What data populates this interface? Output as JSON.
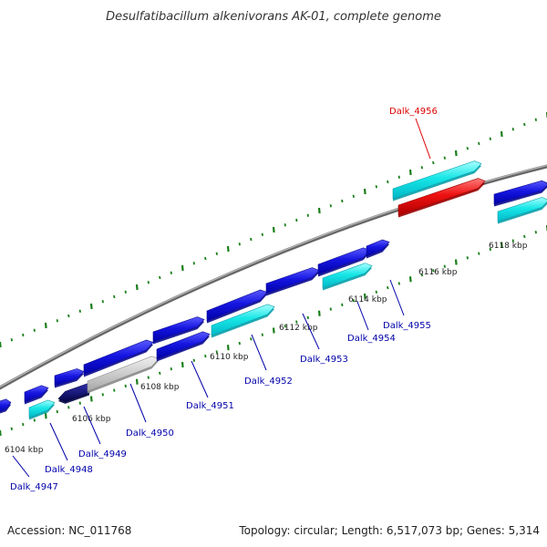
{
  "title": "Desulfatibacillum alkenivorans AK-01, complete genome",
  "footer": {
    "accession": "Accession: NC_011768",
    "summary": "Topology: circular; Length: 6,517,073 bp; Genes: 5,314"
  },
  "colors": {
    "backbone": "#888888",
    "tick": "#1a7f1a",
    "gene_blue": "#1515e0",
    "gene_cyan": "#18e6e6",
    "gene_red": "#ee1111",
    "gene_navy": "#0a0a80",
    "gene_gray": "#c8c8c8",
    "label_blue": "#0000aa",
    "label_red": "#dd0000"
  },
  "ticks": [
    "6104 kbp",
    "6106 kbp",
    "6108 kbp",
    "6110 kbp",
    "6112 kbp",
    "6114 kbp",
    "6116 kbp",
    "6118 kbp"
  ],
  "labels": [
    "Dalk_4947",
    "Dalk_4948",
    "Dalk_4949",
    "Dalk_4950",
    "Dalk_4951",
    "Dalk_4952",
    "Dalk_4953",
    "Dalk_4954",
    "Dalk_4955",
    "Dalk_4956"
  ]
}
